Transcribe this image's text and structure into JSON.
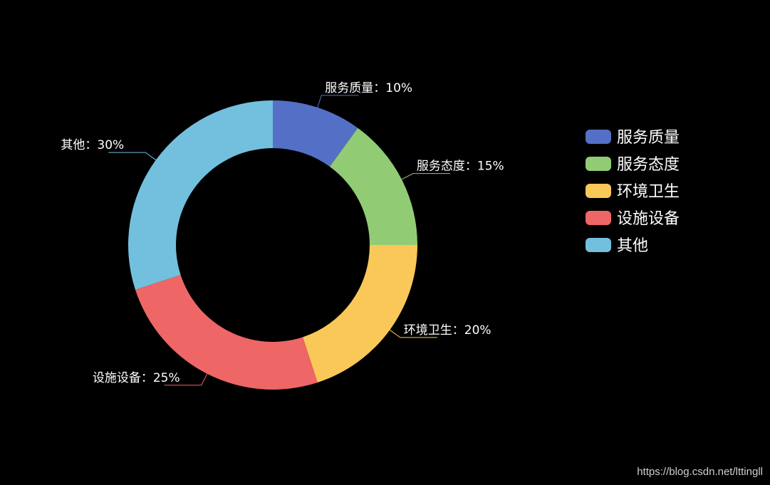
{
  "chart_data": {
    "type": "pie",
    "donut": true,
    "categories": [
      "服务质量",
      "服务态度",
      "环境卫生",
      "设施设备",
      "其他"
    ],
    "values": [
      10,
      15,
      20,
      25,
      30
    ],
    "colors": [
      "#5470c6",
      "#91cc75",
      "#fac858",
      "#ee6666",
      "#73c0de"
    ],
    "labels": [
      "服务质量：10%",
      "服务态度：15%",
      "环境卫生：20%",
      "设施设备：25%",
      "其他：30%"
    ],
    "legend_position": "right",
    "background": "#000000"
  },
  "watermark": "https://blog.csdn.net/lttingll"
}
